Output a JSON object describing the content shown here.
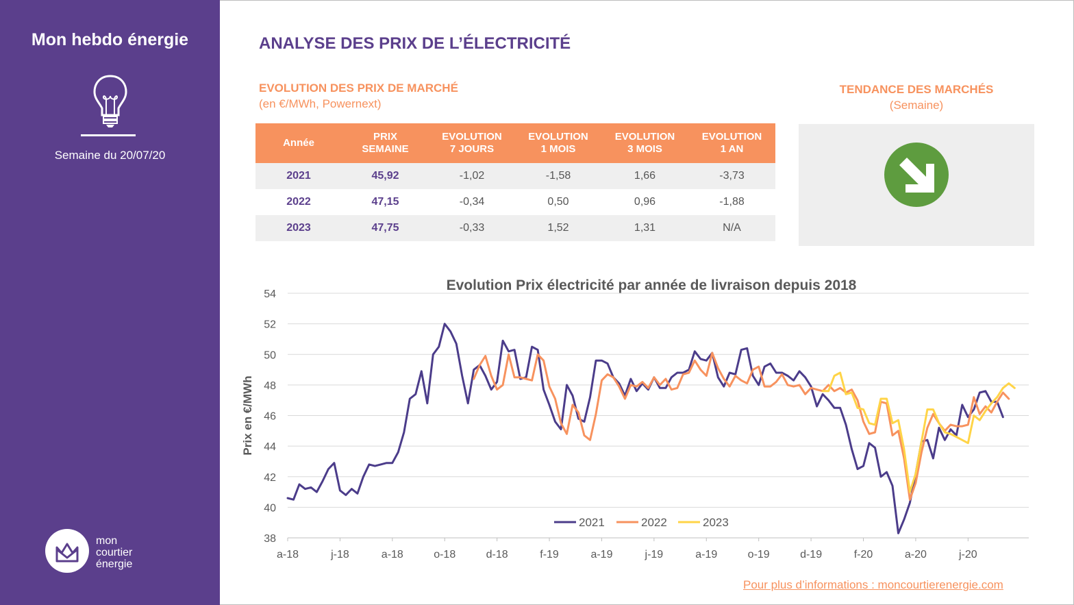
{
  "sidebar": {
    "title": "Mon hebdo énergie",
    "week": "Semaine du 20/07/20",
    "logo_lines": [
      "mon",
      "courtier",
      "énergie"
    ],
    "icons": {
      "main": "lightbulb-icon",
      "logo": "crown-envelope-icon"
    }
  },
  "header": {
    "title": "ANALYSE DES PRIX DE L’ÉLECTRICITÉ",
    "market_title": "EVOLUTION DES PRIX DE MARCHÉ",
    "market_unit": "(en €/MWh, Powernext)"
  },
  "table": {
    "headers": [
      [
        "Année"
      ],
      [
        "PRIX",
        "SEMAINE"
      ],
      [
        "EVOLUTION",
        "7 JOURS"
      ],
      [
        "EVOLUTION",
        "1 MOIS"
      ],
      [
        "EVOLUTION",
        "3 MOIS"
      ],
      [
        "EVOLUTION",
        "1 AN"
      ]
    ],
    "rows": [
      [
        "2021",
        "45,92",
        "-1,02",
        "-1,58",
        "1,66",
        "-3,73"
      ],
      [
        "2022",
        "47,15",
        "-0,34",
        "0,50",
        "0,96",
        "-1,88"
      ],
      [
        "2023",
        "47,75",
        "-0,33",
        "1,52",
        "1,31",
        "N/A"
      ]
    ]
  },
  "trend": {
    "title": "TENDANCE DES MARCHÉS",
    "subtitle": "(Semaine)",
    "icon": "down-right-arrow-icon",
    "color": "#5e9c3f"
  },
  "colors": {
    "brand": "#5b3f8c",
    "accent": "#f7925e",
    "series_2021": "#4b3c8a",
    "series_2022": "#f7925e",
    "series_2023": "#ffd447"
  },
  "chart_data": {
    "type": "line",
    "title": "Evolution Prix électricité par année de livraison depuis 2018",
    "xlabel": "",
    "ylabel": "Prix en €/MWh",
    "ylim": [
      38,
      54
    ],
    "yticks": [
      38,
      40,
      42,
      44,
      46,
      48,
      50,
      52,
      54
    ],
    "grid": true,
    "legend_position": "bottom",
    "x_tick_labels": [
      "a-18",
      "j-18",
      "a-18",
      "o-18",
      "d-18",
      "f-19",
      "a-19",
      "j-19",
      "a-19",
      "o-19",
      "d-19",
      "f-20",
      "a-20",
      "j-20"
    ],
    "x_tick_weeks": [
      0,
      9,
      18,
      27,
      36,
      45,
      54,
      63,
      72,
      81,
      90,
      99,
      108,
      117
    ],
    "x_period": "weekly, from week of April 2018 (week 0) to week of 20/07/2020 (week 123)",
    "series": [
      {
        "name": "2021",
        "start_week": 0,
        "values": [
          40.6,
          40.5,
          41.5,
          41.2,
          41.3,
          41.0,
          41.7,
          42.5,
          42.9,
          41.1,
          40.8,
          41.2,
          40.9,
          42.0,
          42.8,
          42.7,
          42.8,
          42.9,
          42.9,
          43.6,
          44.9,
          47.1,
          47.4,
          48.9,
          46.8,
          50.0,
          50.5,
          52.0,
          51.5,
          50.7,
          48.6,
          46.8,
          49.0,
          49.3,
          48.6,
          47.7,
          48.2,
          50.9,
          50.2,
          50.3,
          48.4,
          48.5,
          50.5,
          50.3,
          47.7,
          46.7,
          45.6,
          45.1,
          48.0,
          47.3,
          45.8,
          45.6,
          47.2,
          49.6,
          49.6,
          49.4,
          48.5,
          48.1,
          47.3,
          48.4,
          47.6,
          48.1,
          47.7,
          48.5,
          47.8,
          47.8,
          48.5,
          48.8,
          48.8,
          49.0,
          50.2,
          49.7,
          49.6,
          50.1,
          48.5,
          47.9,
          48.8,
          48.7,
          50.3,
          50.4,
          48.6,
          48.0,
          49.2,
          49.4,
          48.8,
          48.8,
          48.6,
          48.3,
          48.9,
          48.5,
          47.9,
          46.6,
          47.4,
          47.0,
          46.5,
          46.5,
          45.4,
          43.8,
          42.5,
          42.7,
          44.2,
          43.9,
          42.0,
          42.3,
          41.4,
          38.3,
          39.2,
          40.3,
          42.2,
          44.3,
          44.4,
          43.2,
          45.2,
          44.4,
          45.1,
          44.7,
          46.7,
          45.9,
          46.4,
          47.5,
          47.6,
          46.9,
          46.9,
          45.9
        ]
      },
      {
        "name": "2022",
        "start_week": 32,
        "values": [
          48.4,
          49.3,
          49.9,
          48.6,
          47.7,
          48.0,
          50.0,
          48.5,
          48.5,
          48.4,
          48.3,
          50.0,
          49.6,
          47.9,
          47.1,
          45.5,
          44.8,
          46.7,
          46.2,
          44.7,
          44.4,
          46.1,
          48.3,
          48.7,
          48.5,
          47.9,
          47.1,
          48.0,
          47.9,
          48.2,
          47.8,
          48.5,
          48.0,
          48.4,
          47.7,
          47.8,
          48.7,
          48.8,
          49.6,
          49.0,
          48.6,
          50.1,
          49.1,
          48.4,
          47.9,
          48.6,
          48.3,
          48.1,
          49.0,
          49.2,
          47.9,
          47.9,
          48.2,
          48.7,
          48.0,
          47.9,
          48.0,
          47.4,
          47.8,
          47.7,
          47.6,
          48.0,
          47.6,
          47.8,
          47.5,
          47.7,
          47.0,
          45.6,
          44.8,
          44.9,
          46.9,
          46.8,
          44.7,
          45.0,
          43.2,
          40.5,
          41.6,
          43.6,
          45.2,
          46.1,
          45.5,
          45.0,
          45.4,
          45.3,
          45.3,
          45.4,
          47.2,
          46.1,
          46.6,
          46.2,
          46.9,
          47.5,
          47.1
        ]
      },
      {
        "name": "2023",
        "start_week": 92,
        "values": [
          47.6,
          47.6,
          48.6,
          48.8,
          47.4,
          47.5,
          46.5,
          46.4,
          45.5,
          45.4,
          47.1,
          47.1,
          45.5,
          45.7,
          43.8,
          41.0,
          42.2,
          44.3,
          46.4,
          46.4,
          45.5,
          44.9,
          44.8,
          44.6,
          44.4,
          44.2,
          46.0,
          45.7,
          46.3,
          46.8,
          47.2,
          47.8,
          48.1,
          47.8
        ]
      }
    ]
  },
  "footer": {
    "link_text": "Pour plus d’informations : moncourtierenergie.com"
  }
}
